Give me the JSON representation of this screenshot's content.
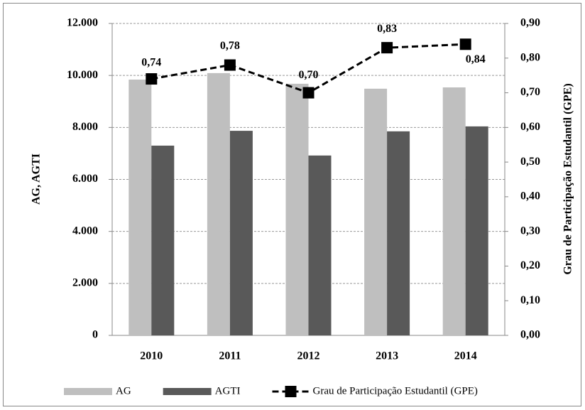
{
  "chart_data": {
    "type": "bar-line",
    "categories": [
      "2010",
      "2011",
      "2012",
      "2013",
      "2014"
    ],
    "series": [
      {
        "name": "AG",
        "color": "#bfbfbf",
        "type": "bar",
        "values": [
          9840,
          10090,
          9680,
          9490,
          9540
        ]
      },
      {
        "name": "AGTI",
        "color": "#595959",
        "type": "bar",
        "values": [
          7300,
          7870,
          6920,
          7850,
          8040
        ]
      },
      {
        "name": "Grau de Participação Estudantil (GPE)",
        "color": "#000000",
        "type": "line",
        "axis": "y2",
        "values": [
          0.74,
          0.78,
          0.7,
          0.83,
          0.84
        ],
        "value_labels": [
          "0,74",
          "0,78",
          "0,70",
          "0,83",
          "0,84"
        ]
      }
    ],
    "ylabel": "AG, AGTI",
    "y2label": "Grau de Participação Estudantil (GPE)",
    "ylim": [
      0,
      12000
    ],
    "yticks": [
      0,
      {
        "value": 2000,
        "label": "2.000"
      },
      {
        "value": 4000,
        "label": "4.000"
      },
      {
        "value": 6000,
        "label": "6.000"
      },
      {
        "value": 8000,
        "label": "8.000"
      },
      {
        "value": 10000,
        "label": "10.000"
      },
      {
        "value": 12000,
        "label": "12.000"
      }
    ],
    "y2lim": [
      0,
      0.9
    ],
    "y2ticks": [
      {
        "value": 0,
        "label": "0,00"
      },
      {
        "value": 0.1,
        "label": "0,10"
      },
      {
        "value": 0.2,
        "label": "0,20"
      },
      {
        "value": 0.3,
        "label": "0,30"
      },
      {
        "value": 0.4,
        "label": "0,40"
      },
      {
        "value": 0.5,
        "label": "0,50"
      },
      {
        "value": 0.6,
        "label": "0,60"
      },
      {
        "value": 0.7,
        "label": "0,70"
      },
      {
        "value": 0.8,
        "label": "0,80"
      },
      {
        "value": 0.9,
        "label": "0,90"
      }
    ],
    "grid": true,
    "legend": "bottom"
  }
}
